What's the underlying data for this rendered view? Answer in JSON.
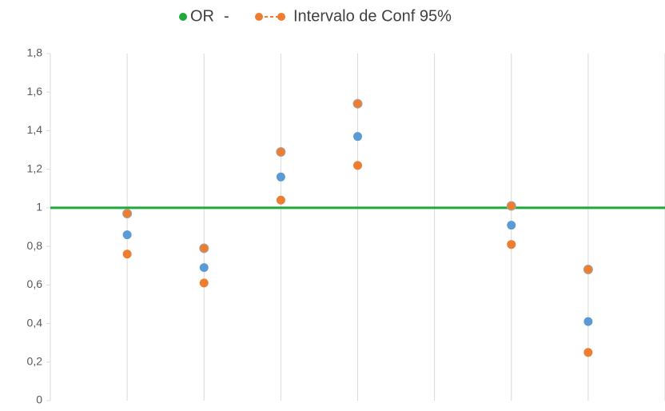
{
  "chart_data": {
    "type": "scatter",
    "legend_separator": "-",
    "x": [
      1,
      2,
      3,
      4,
      6,
      7
    ],
    "series": [
      {
        "name": "OR",
        "color": "#5b9bd5",
        "values": [
          0.86,
          0.69,
          1.16,
          1.37,
          0.91,
          0.41
        ]
      },
      {
        "name": "Intervalo de Conf 95%",
        "color": "#ed7d31",
        "upper": [
          0.97,
          0.79,
          1.29,
          1.54,
          1.01,
          0.68
        ],
        "lower": [
          0.76,
          0.61,
          1.04,
          1.22,
          0.81,
          0.25
        ]
      }
    ],
    "reference_line": {
      "y": 1,
      "color": "#1fa83c"
    },
    "xlim": [
      0,
      8
    ],
    "xticks": [
      0,
      1,
      2,
      3,
      4,
      5,
      6,
      7,
      8
    ],
    "ylim": [
      0,
      1.8
    ],
    "yticks": [
      0,
      {
        "value": 0.2,
        "label": "0,2"
      },
      {
        "value": 0.4,
        "label": "0,4"
      },
      {
        "value": 0.6,
        "label": "0,6"
      },
      {
        "value": 0.8,
        "label": "0,8"
      },
      1,
      {
        "value": 1.2,
        "label": "1,2"
      },
      {
        "value": 1.4,
        "label": "1,4"
      },
      {
        "value": 1.6,
        "label": "1,6"
      },
      {
        "value": 1.8,
        "label": "1,8"
      }
    ],
    "grid": "x"
  }
}
